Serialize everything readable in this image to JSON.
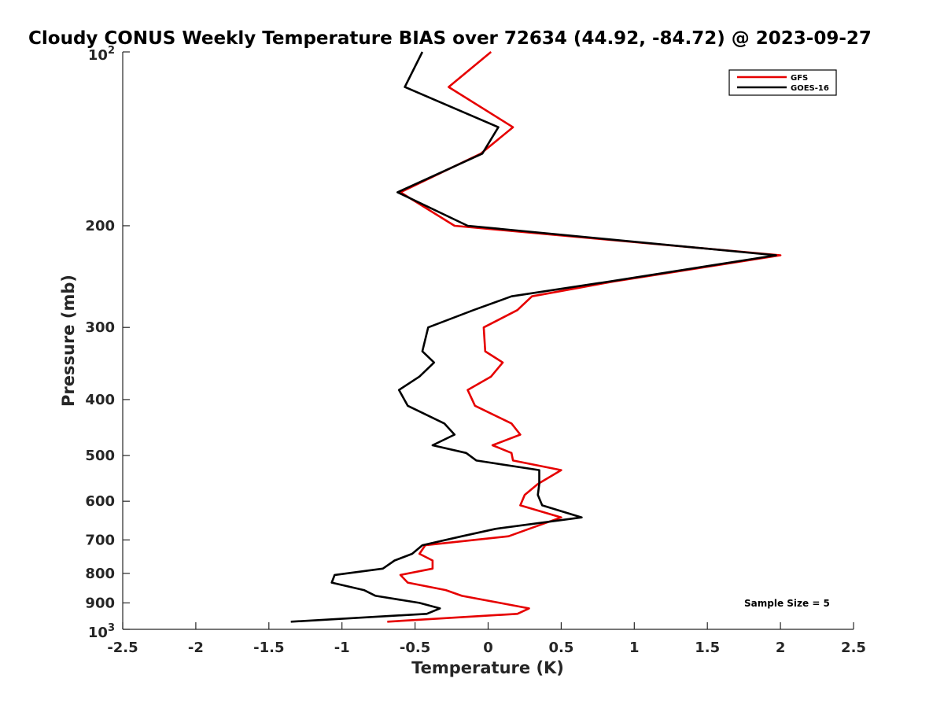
{
  "chart_data": {
    "type": "line",
    "title": "Cloudy CONUS Weekly Temperature BIAS over 72634 (44.92, -84.72) @ 2023-09-27",
    "xlabel": "Temperature (K)",
    "ylabel": "Pressure (mb)",
    "xlim": [
      -2.5,
      2.5
    ],
    "ylim": [
      100,
      1000
    ],
    "y_scale": "log",
    "y_reversed": true,
    "x_ticks": [
      -2.5,
      -2,
      -1.5,
      -1,
      -0.5,
      0,
      0.5,
      1,
      1.5,
      2,
      2.5
    ],
    "x_tick_labels": [
      "-2.5",
      "-2",
      "-1.5",
      "-1",
      "-0.5",
      "0",
      "0.5",
      "1",
      "1.5",
      "2",
      "2.5"
    ],
    "y_ticks": [
      200,
      300,
      400,
      500,
      600,
      700,
      800,
      900
    ],
    "y_tick_labels": [
      "200",
      "300",
      "400",
      "500",
      "600",
      "700",
      "800",
      "900"
    ],
    "y_end_labels": {
      "top_base": "10",
      "top_exp": "2",
      "bottom_base": "10",
      "bottom_exp": "3"
    },
    "grid": false,
    "legend_position": "top-right",
    "annotation": "Sample Size = 5",
    "series": [
      {
        "name": "GFS",
        "color": "#e60000",
        "points": [
          [
            0.02,
            100
          ],
          [
            -0.27,
            115
          ],
          [
            0.17,
            135
          ],
          [
            -0.05,
            150
          ],
          [
            -0.6,
            175
          ],
          [
            -0.23,
            200
          ],
          [
            2.0,
            225
          ],
          [
            0.85,
            250
          ],
          [
            0.3,
            265
          ],
          [
            0.2,
            280
          ],
          [
            -0.03,
            300
          ],
          [
            -0.02,
            330
          ],
          [
            0.1,
            345
          ],
          [
            0.02,
            365
          ],
          [
            -0.14,
            385
          ],
          [
            -0.09,
            410
          ],
          [
            0.16,
            440
          ],
          [
            0.22,
            460
          ],
          [
            0.03,
            480
          ],
          [
            0.16,
            495
          ],
          [
            0.17,
            510
          ],
          [
            0.5,
            530
          ],
          [
            0.34,
            560
          ],
          [
            0.25,
            585
          ],
          [
            0.22,
            610
          ],
          [
            0.5,
            640
          ],
          [
            0.28,
            670
          ],
          [
            0.14,
            690
          ],
          [
            -0.43,
            715
          ],
          [
            -0.47,
            740
          ],
          [
            -0.38,
            760
          ],
          [
            -0.38,
            785
          ],
          [
            -0.6,
            805
          ],
          [
            -0.55,
            830
          ],
          [
            -0.29,
            855
          ],
          [
            -0.18,
            875
          ],
          [
            0.08,
            900
          ],
          [
            0.28,
            920
          ],
          [
            0.2,
            940
          ],
          [
            -0.69,
            970
          ]
        ]
      },
      {
        "name": "GOES-16",
        "color": "#000000",
        "points": [
          [
            -0.45,
            100
          ],
          [
            -0.57,
            115
          ],
          [
            0.07,
            135
          ],
          [
            -0.04,
            150
          ],
          [
            -0.62,
            175
          ],
          [
            -0.14,
            200
          ],
          [
            1.97,
            225
          ],
          [
            0.82,
            250
          ],
          [
            0.16,
            265
          ],
          [
            -0.1,
            280
          ],
          [
            -0.41,
            300
          ],
          [
            -0.45,
            330
          ],
          [
            -0.37,
            345
          ],
          [
            -0.47,
            365
          ],
          [
            -0.61,
            385
          ],
          [
            -0.55,
            410
          ],
          [
            -0.3,
            440
          ],
          [
            -0.23,
            460
          ],
          [
            -0.38,
            480
          ],
          [
            -0.15,
            495
          ],
          [
            -0.08,
            510
          ],
          [
            0.35,
            530
          ],
          [
            0.35,
            560
          ],
          [
            0.34,
            585
          ],
          [
            0.37,
            610
          ],
          [
            0.64,
            640
          ],
          [
            0.05,
            670
          ],
          [
            -0.18,
            690
          ],
          [
            -0.45,
            715
          ],
          [
            -0.52,
            740
          ],
          [
            -0.64,
            760
          ],
          [
            -0.72,
            785
          ],
          [
            -1.05,
            805
          ],
          [
            -1.07,
            830
          ],
          [
            -0.85,
            855
          ],
          [
            -0.77,
            875
          ],
          [
            -0.47,
            900
          ],
          [
            -0.33,
            920
          ],
          [
            -0.42,
            940
          ],
          [
            -1.35,
            970
          ]
        ]
      }
    ]
  }
}
